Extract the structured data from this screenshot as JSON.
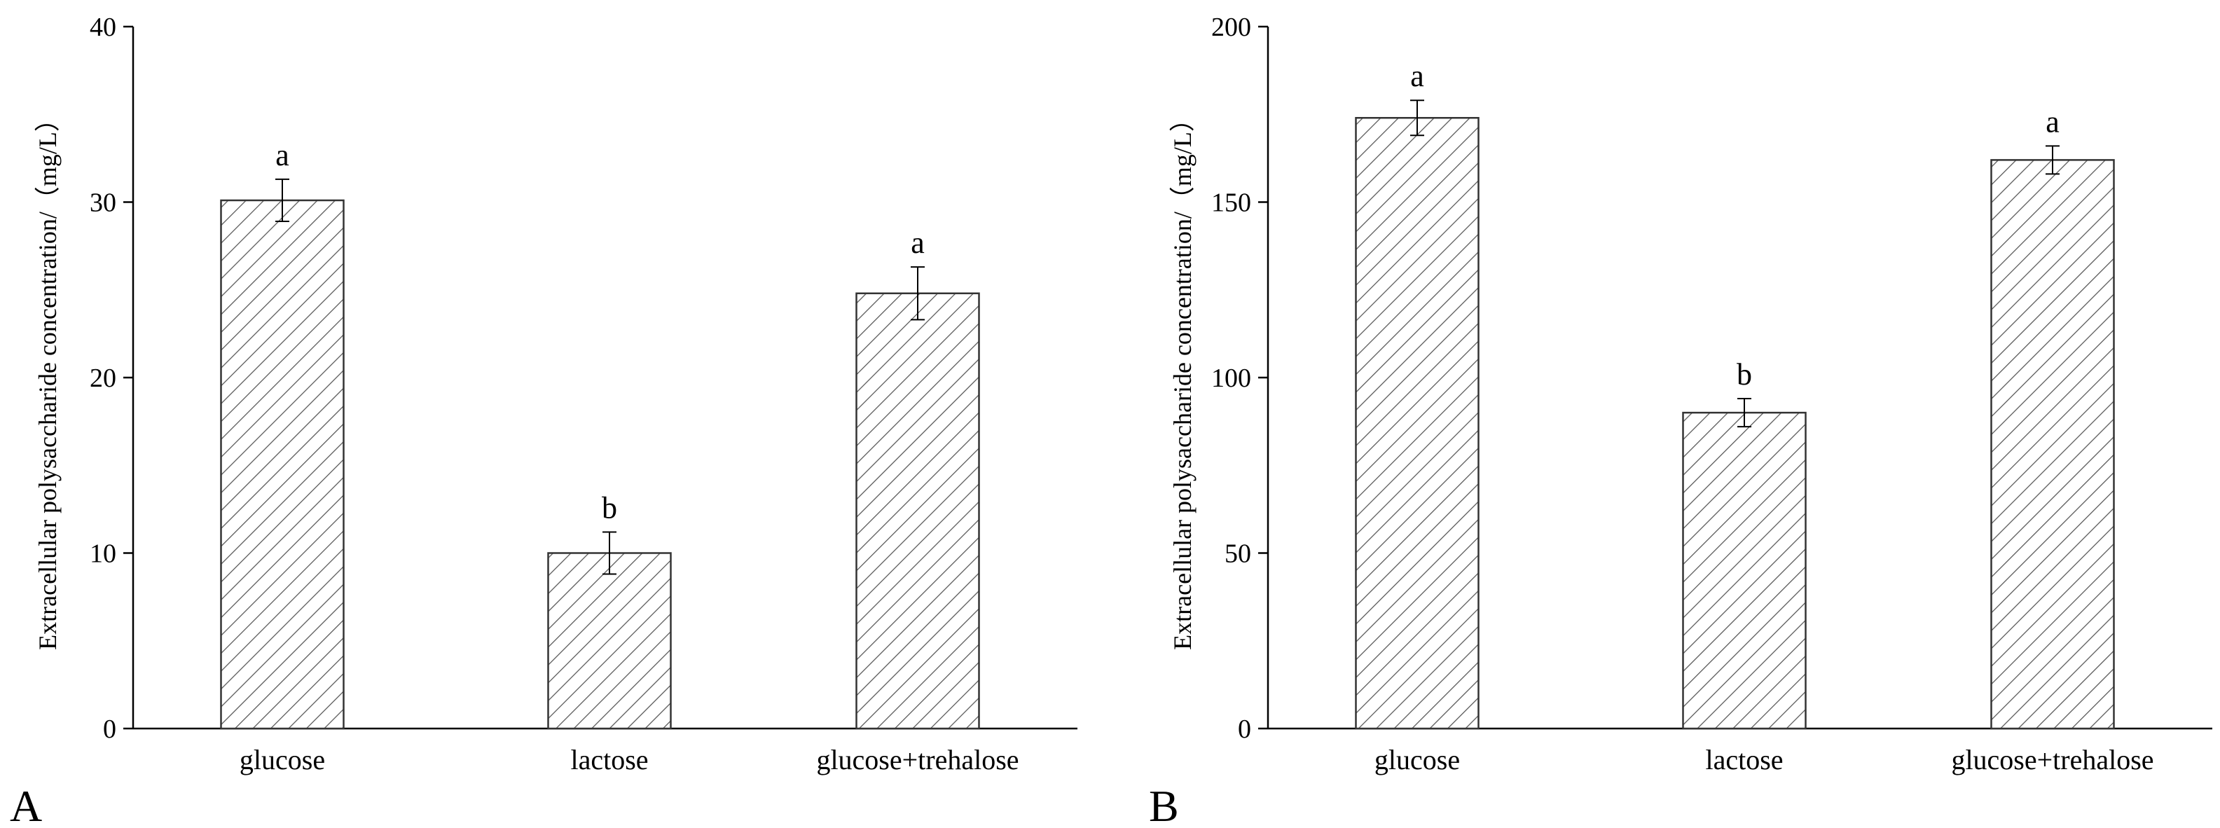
{
  "panels": [
    {
      "letter": "A"
    },
    {
      "letter": "B"
    }
  ],
  "chart_data": [
    {
      "type": "bar",
      "categories": [
        "glucose",
        "lactose",
        "glucose+trehalose"
      ],
      "values": [
        30.1,
        10.0,
        24.8
      ],
      "errors": [
        1.2,
        1.2,
        1.5
      ],
      "significance": [
        "a",
        "b",
        "a"
      ],
      "title": "",
      "xlabel": "",
      "ylabel": "Extracellular polysaccharide concentration/（mg/L）",
      "ylim": [
        0,
        40
      ],
      "yticks": [
        0,
        10,
        20,
        30,
        40
      ],
      "bar_fill": "hatched diagonal",
      "bar_color": "#333333",
      "grid": false
    },
    {
      "type": "bar",
      "categories": [
        "glucose",
        "lactose",
        "glucose+trehalose"
      ],
      "values": [
        174,
        90,
        162
      ],
      "errors": [
        5,
        4,
        4
      ],
      "significance": [
        "a",
        "b",
        "a"
      ],
      "title": "",
      "xlabel": "",
      "ylabel": "Extracellular polysaccharide concentration/（mg/L）",
      "ylim": [
        0,
        200
      ],
      "yticks": [
        0,
        50,
        100,
        150,
        200
      ],
      "bar_fill": "hatched diagonal",
      "bar_color": "#333333",
      "grid": false
    }
  ]
}
